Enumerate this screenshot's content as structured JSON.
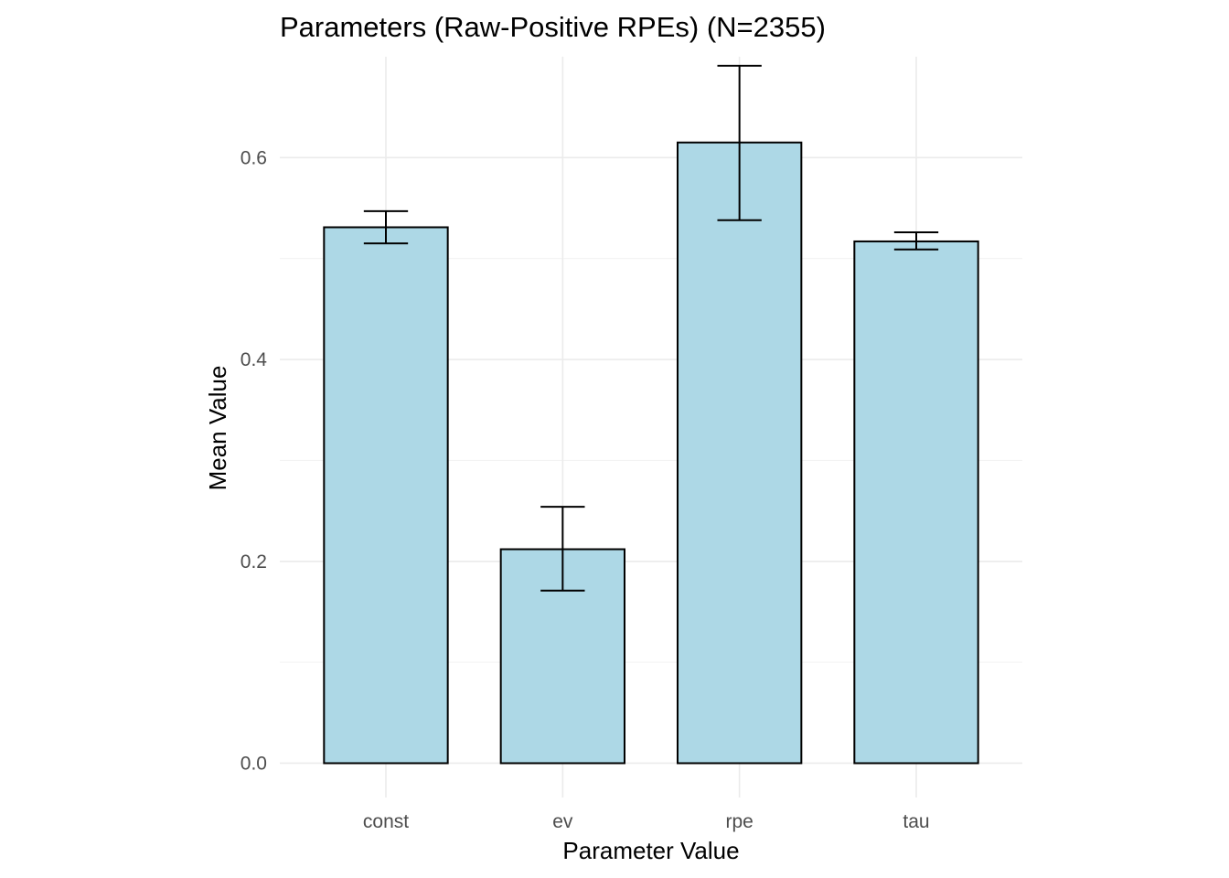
{
  "chart_data": {
    "type": "bar",
    "title": "Parameters (Raw-Positive RPEs) (N=2355)",
    "xlabel": "Parameter Value",
    "ylabel": "Mean Value",
    "categories": [
      "const",
      "ev",
      "rpe",
      "tau"
    ],
    "values": [
      0.531,
      0.212,
      0.615,
      0.517
    ],
    "error_low": [
      0.515,
      0.171,
      0.538,
      0.509
    ],
    "error_high": [
      0.547,
      0.254,
      0.691,
      0.526
    ],
    "ylim": [
      -0.034,
      0.7
    ],
    "yticks": [
      0.0,
      0.2,
      0.4,
      0.6
    ],
    "ytick_labels": [
      "0.0",
      "0.2",
      "0.4",
      "0.6"
    ],
    "grid": true,
    "legend": "none",
    "bar_fill": "#add8e6",
    "bar_outline": "#000000"
  }
}
